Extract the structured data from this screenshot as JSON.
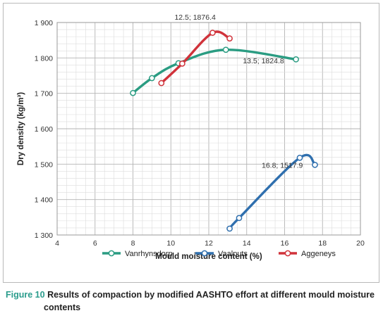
{
  "chart_data": {
    "type": "line",
    "xlabel": "Mould moisture content (%)",
    "ylabel": "Dry density (kg/m³)",
    "xlim": [
      4,
      20
    ],
    "ylim": [
      1300,
      1900
    ],
    "x_ticks": [
      "4",
      "6",
      "8",
      "10",
      "12",
      "14",
      "16",
      "18",
      "20"
    ],
    "y_ticks": [
      "1 300",
      "1 400",
      "1 500",
      "1 600",
      "1 700",
      "1 800",
      "1 900"
    ],
    "grid": true,
    "legend_position": "bottom",
    "series": [
      {
        "name": "Vanrhynsdorp",
        "color": "#2a9c82",
        "points": [
          [
            8.0,
            1701
          ],
          [
            9.0,
            1743
          ],
          [
            10.4,
            1785
          ],
          [
            12.9,
            1823
          ],
          [
            16.6,
            1796
          ]
        ]
      },
      {
        "name": "Vaalputs",
        "color": "#2f6fae",
        "points": [
          [
            13.1,
            1318
          ],
          [
            13.6,
            1348
          ],
          [
            16.8,
            1518
          ],
          [
            17.6,
            1498
          ]
        ]
      },
      {
        "name": "Aggeneys",
        "color": "#d0323a",
        "points": [
          [
            9.5,
            1729
          ],
          [
            10.6,
            1784
          ],
          [
            12.2,
            1871
          ],
          [
            13.1,
            1855
          ]
        ]
      }
    ],
    "annotations": [
      {
        "text": "12.5; 1876.4",
        "x": 12.5,
        "y": 1876.4
      },
      {
        "text": "13.5; 1824.8",
        "x": 13.5,
        "y": 1824.8
      },
      {
        "text": "16.8; 1517.9",
        "x": 16.8,
        "y": 1517.9
      }
    ]
  },
  "caption": {
    "figure_label": "Figure 10",
    "text": "Results of compaction by modified AASHTO effort at different mould moisture",
    "continuation": "contents"
  }
}
